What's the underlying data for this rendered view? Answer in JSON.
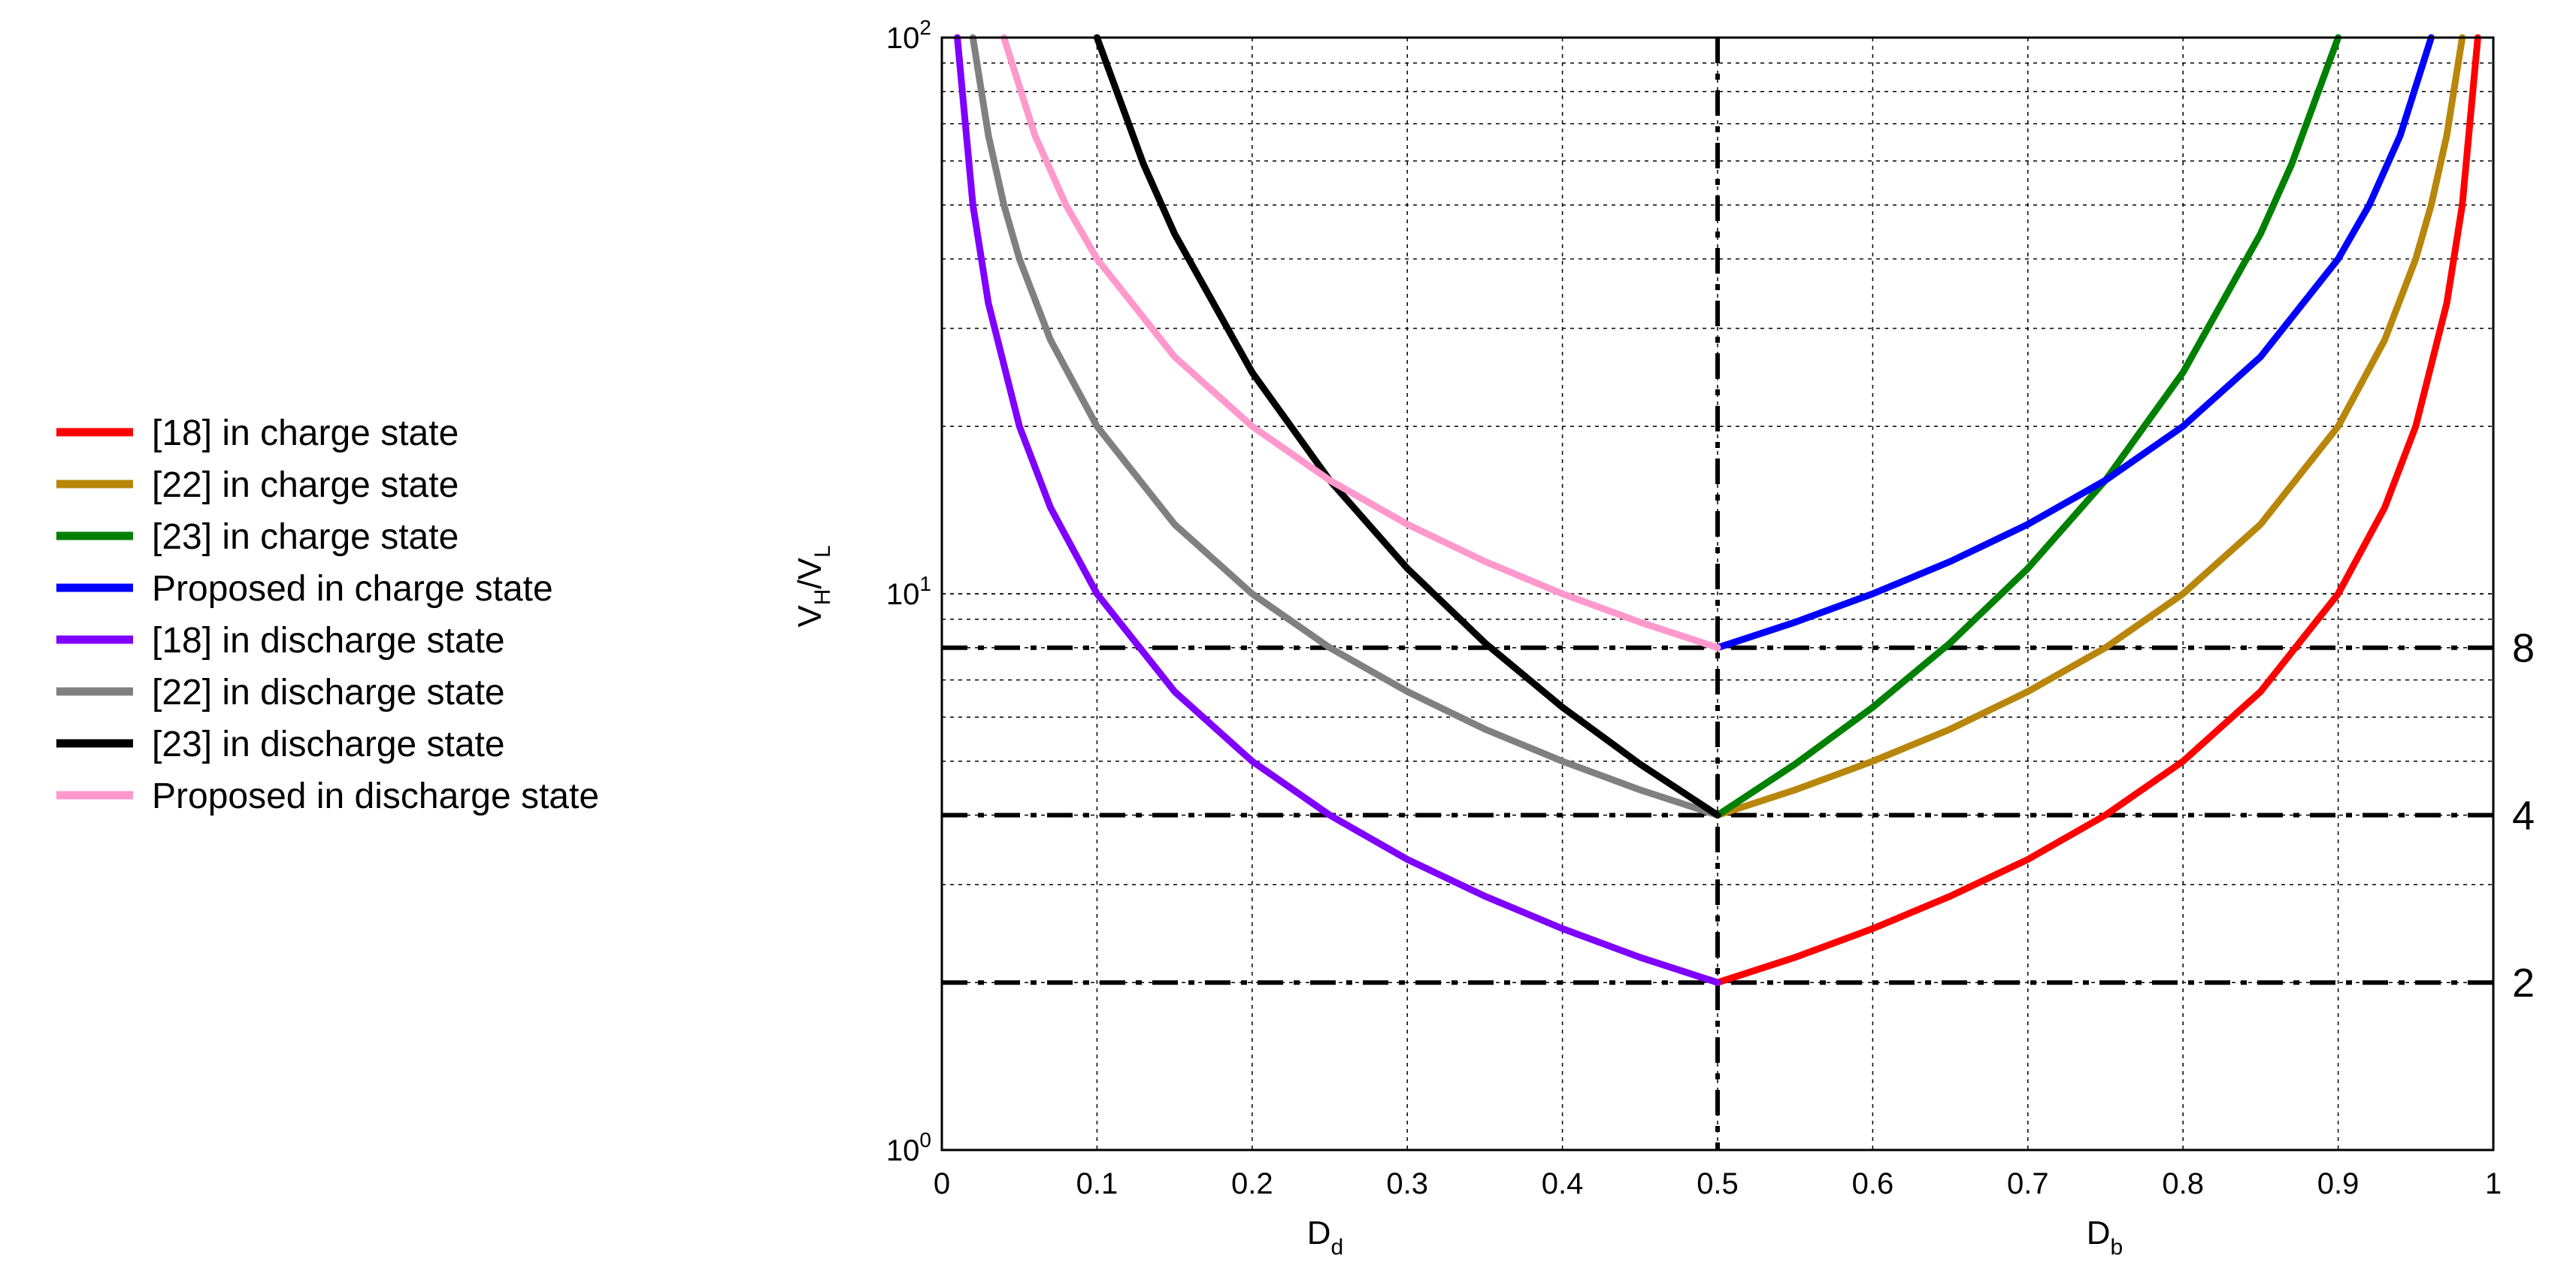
{
  "chart_data": {
    "type": "line",
    "xlabel_left": "D",
    "xlabel_left_sub": "d",
    "xlabel_right": "D",
    "xlabel_right_sub": "b",
    "ylabel": "V",
    "ylabel_sub1": "H",
    "ylabel_sep": "/V",
    "ylabel_sub2": "L",
    "xlim": [
      0,
      1
    ],
    "ylim": [
      1,
      100
    ],
    "yscale": "log",
    "grid": true,
    "legend_position": "left",
    "x_ticks": [
      "0",
      "0.1",
      "0.2",
      "0.3",
      "0.4",
      "0.5",
      "0.6",
      "0.7",
      "0.8",
      "0.9",
      "1"
    ],
    "y_ticks": [
      {
        "base": "10",
        "exp": "0",
        "value": 1
      },
      {
        "base": "10",
        "exp": "1",
        "value": 10
      },
      {
        "base": "10",
        "exp": "2",
        "value": 100
      }
    ],
    "reference_lines": [
      {
        "y": 8,
        "label": "8"
      },
      {
        "y": 4,
        "label": "4"
      },
      {
        "y": 2,
        "label": "2"
      }
    ],
    "vertical_reference_x": 0.5,
    "series": [
      {
        "name": "[18] in charge state",
        "color": "#ff0000",
        "x": [
          0.5,
          0.55,
          0.6,
          0.65,
          0.7,
          0.75,
          0.8,
          0.85,
          0.9,
          0.93,
          0.95,
          0.97,
          0.98,
          0.99
        ],
        "y": [
          2.0,
          2.22,
          2.5,
          2.86,
          3.33,
          4.0,
          5.0,
          6.67,
          10.0,
          14.29,
          20.0,
          33.3,
          50.0,
          100.0
        ]
      },
      {
        "name": "[22] in charge state",
        "color": "#b8860b",
        "x": [
          0.5,
          0.55,
          0.6,
          0.65,
          0.7,
          0.75,
          0.8,
          0.85,
          0.9,
          0.93,
          0.95,
          0.96,
          0.97,
          0.98
        ],
        "y": [
          4.0,
          4.44,
          5.0,
          5.71,
          6.67,
          8.0,
          10.0,
          13.33,
          20.0,
          28.6,
          40.0,
          50.0,
          66.7,
          100.0
        ]
      },
      {
        "name": "[23] in charge state",
        "color": "#008000",
        "x": [
          0.5,
          0.55,
          0.6,
          0.65,
          0.7,
          0.75,
          0.8,
          0.85,
          0.87,
          0.9
        ],
        "y": [
          4.0,
          4.94,
          6.25,
          8.16,
          11.11,
          16.0,
          25.0,
          44.4,
          59.2,
          100.0
        ]
      },
      {
        "name": "Proposed in charge state",
        "color": "#0000ff",
        "x": [
          0.5,
          0.55,
          0.6,
          0.65,
          0.7,
          0.75,
          0.8,
          0.85,
          0.9,
          0.92,
          0.94,
          0.96
        ],
        "y": [
          8.0,
          8.89,
          10.0,
          11.43,
          13.33,
          16.0,
          20.0,
          26.67,
          40.0,
          50.0,
          66.7,
          100.0
        ]
      },
      {
        "name": "[18] in discharge state",
        "color": "#7f00ff",
        "x": [
          0.01,
          0.02,
          0.03,
          0.05,
          0.07,
          0.1,
          0.15,
          0.2,
          0.25,
          0.3,
          0.35,
          0.4,
          0.45,
          0.5
        ],
        "y": [
          100.0,
          50.0,
          33.3,
          20.0,
          14.29,
          10.0,
          6.67,
          5.0,
          4.0,
          3.33,
          2.86,
          2.5,
          2.22,
          2.0
        ]
      },
      {
        "name": "[22] in discharge state",
        "color": "#808080",
        "x": [
          0.02,
          0.03,
          0.04,
          0.05,
          0.07,
          0.1,
          0.15,
          0.2,
          0.25,
          0.3,
          0.35,
          0.4,
          0.45,
          0.5
        ],
        "y": [
          100.0,
          66.7,
          50.0,
          40.0,
          28.6,
          20.0,
          13.33,
          10.0,
          8.0,
          6.67,
          5.71,
          5.0,
          4.44,
          4.0
        ]
      },
      {
        "name": "[23] in discharge state",
        "color": "#000000",
        "x": [
          0.1,
          0.13,
          0.15,
          0.2,
          0.25,
          0.3,
          0.35,
          0.4,
          0.45,
          0.5
        ],
        "y": [
          100.0,
          59.2,
          44.4,
          25.0,
          16.0,
          11.11,
          8.16,
          6.25,
          4.94,
          4.0
        ]
      },
      {
        "name": "Proposed in discharge state",
        "color": "#ff99cc",
        "x": [
          0.04,
          0.06,
          0.08,
          0.1,
          0.15,
          0.2,
          0.25,
          0.3,
          0.35,
          0.4,
          0.45,
          0.5
        ],
        "y": [
          100.0,
          66.7,
          50.0,
          40.0,
          26.67,
          20.0,
          16.0,
          13.33,
          11.43,
          10.0,
          8.89,
          8.0
        ]
      }
    ]
  }
}
